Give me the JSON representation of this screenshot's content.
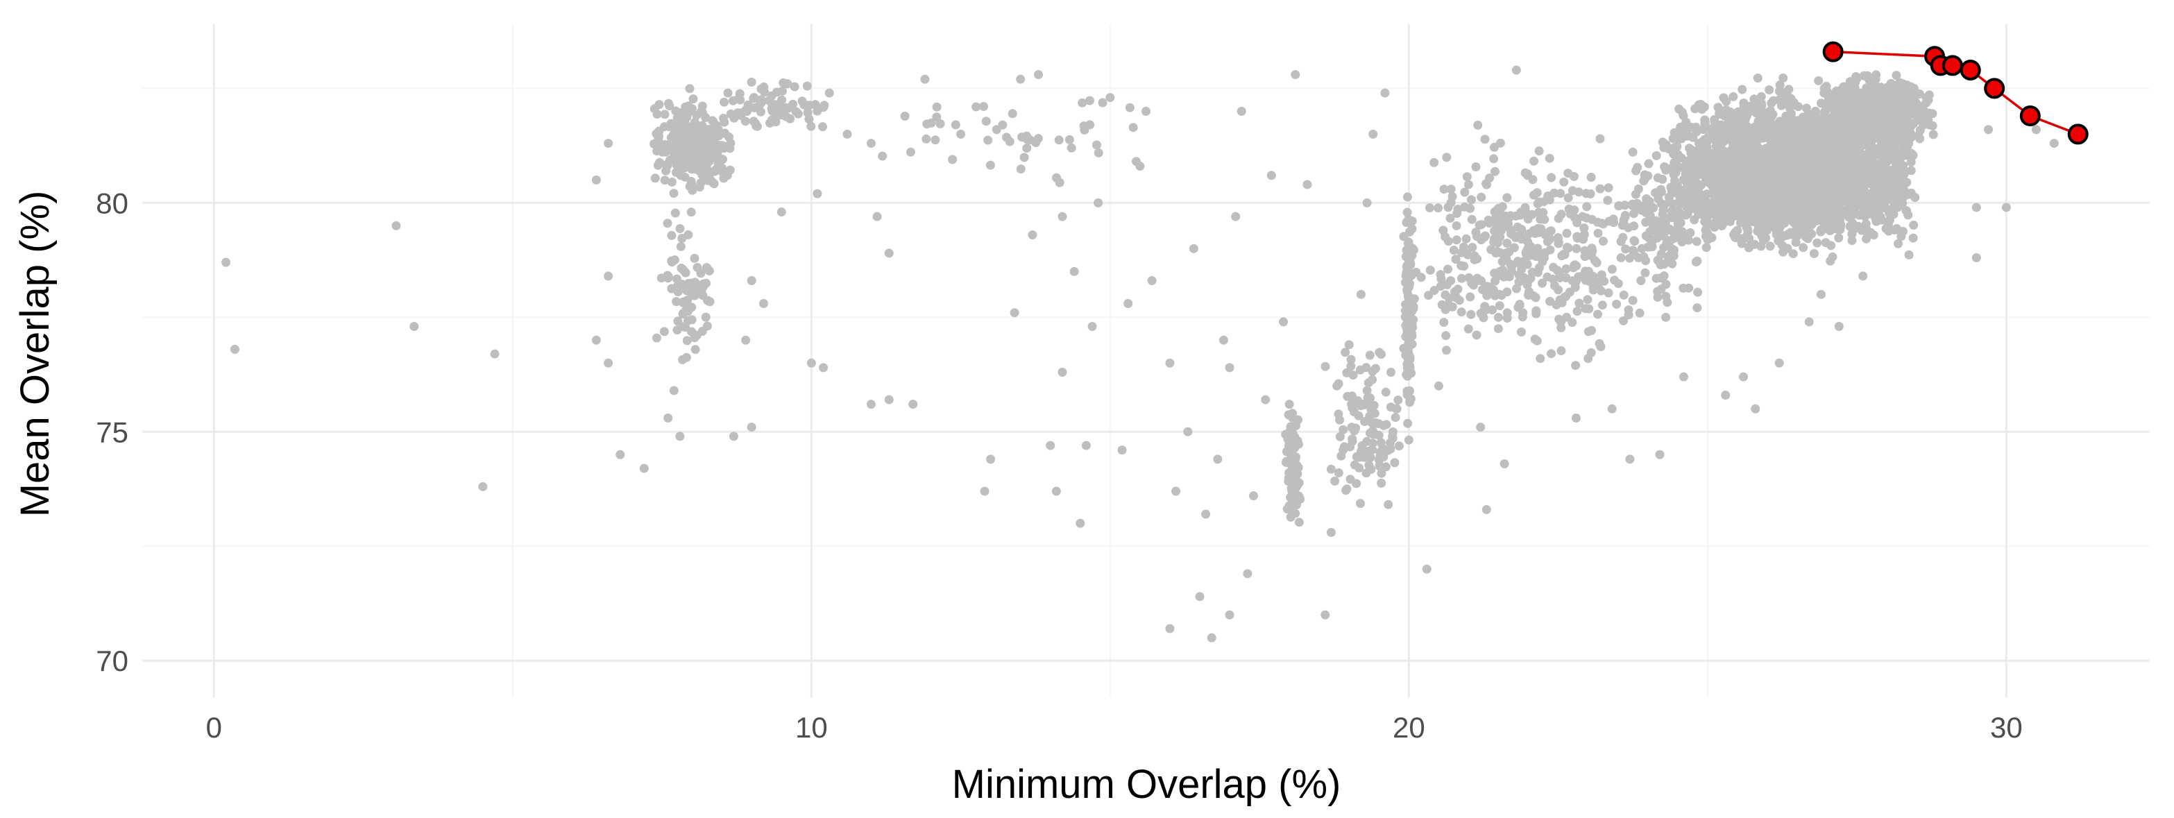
{
  "chart_data": {
    "type": "scatter",
    "title": "",
    "xlabel": "Minimum Overlap (%)",
    "ylabel": "Mean Overlap (%)",
    "xlim": [
      -1.2,
      32.4
    ],
    "ylim": [
      69.2,
      83.9
    ],
    "x_ticks": [
      0,
      10,
      20,
      30
    ],
    "y_ticks": [
      70,
      75,
      80
    ],
    "grid": true,
    "legend": "none",
    "colors": {
      "background_points": "#bebebe",
      "frontier_line": "#dd0000",
      "frontier_point_fill": "#ee0000",
      "frontier_point_stroke": "#000000",
      "grid_major": "#ebebeb",
      "grid_minor": "#f5f5f5"
    },
    "series": [
      {
        "role": "candidates",
        "marker": "point",
        "points": [
          [
            0.2,
            78.7
          ],
          [
            0.35,
            76.8
          ],
          [
            3.05,
            79.5
          ],
          [
            3.35,
            77.3
          ],
          [
            4.7,
            76.7
          ],
          [
            4.5,
            73.8
          ],
          [
            6.6,
            81.3
          ],
          [
            6.4,
            80.5
          ],
          [
            6.6,
            78.4
          ],
          [
            6.4,
            77.0
          ],
          [
            6.6,
            76.5
          ],
          [
            6.8,
            74.5
          ],
          [
            7.2,
            74.2
          ],
          [
            7.6,
            75.3
          ],
          [
            7.8,
            74.9
          ],
          [
            7.7,
            75.9
          ],
          [
            8.7,
            74.9
          ],
          [
            9.0,
            75.1
          ],
          [
            8.9,
            77.0
          ],
          [
            9.0,
            78.3
          ],
          [
            9.2,
            77.8
          ],
          [
            9.5,
            79.8
          ],
          [
            9.6,
            82.6
          ],
          [
            10.0,
            76.5
          ],
          [
            10.2,
            76.4
          ],
          [
            10.1,
            80.2
          ],
          [
            10.3,
            82.4
          ],
          [
            10.6,
            81.5
          ],
          [
            11.0,
            75.6
          ],
          [
            11.3,
            75.7
          ],
          [
            11.7,
            75.6
          ],
          [
            11.3,
            78.9
          ],
          [
            11.1,
            79.7
          ],
          [
            11.0,
            81.3
          ],
          [
            11.9,
            82.7
          ],
          [
            12.5,
            81.5
          ],
          [
            12.9,
            73.7
          ],
          [
            13.0,
            74.4
          ],
          [
            13.1,
            81.6
          ],
          [
            13.2,
            81.7
          ],
          [
            13.5,
            82.7
          ],
          [
            13.4,
            77.6
          ],
          [
            13.7,
            79.3
          ],
          [
            13.8,
            82.8
          ],
          [
            14.0,
            74.7
          ],
          [
            14.1,
            73.7
          ],
          [
            14.2,
            76.3
          ],
          [
            14.4,
            78.5
          ],
          [
            14.2,
            79.7
          ],
          [
            14.5,
            73.0
          ],
          [
            14.6,
            74.7
          ],
          [
            14.7,
            77.3
          ],
          [
            14.8,
            80.0
          ],
          [
            15.0,
            82.3
          ],
          [
            15.2,
            74.6
          ],
          [
            15.3,
            77.8
          ],
          [
            15.5,
            80.8
          ],
          [
            15.6,
            82.0
          ],
          [
            15.7,
            78.3
          ],
          [
            16.0,
            76.5
          ],
          [
            16.0,
            70.7
          ],
          [
            16.1,
            73.7
          ],
          [
            16.3,
            75.0
          ],
          [
            16.4,
            79.0
          ],
          [
            16.5,
            71.4
          ],
          [
            16.6,
            73.2
          ],
          [
            16.7,
            70.5
          ],
          [
            16.8,
            74.4
          ],
          [
            16.9,
            77.0
          ],
          [
            17.0,
            71.0
          ],
          [
            17.0,
            76.4
          ],
          [
            17.1,
            79.7
          ],
          [
            17.2,
            82.0
          ],
          [
            17.3,
            71.9
          ],
          [
            17.4,
            73.6
          ],
          [
            17.6,
            75.7
          ],
          [
            17.7,
            80.6
          ],
          [
            17.9,
            77.4
          ],
          [
            18.0,
            75.6
          ],
          [
            18.1,
            82.8
          ],
          [
            18.3,
            80.4
          ],
          [
            18.6,
            71.0
          ],
          [
            18.7,
            72.8
          ],
          [
            18.9,
            74.6
          ],
          [
            19.0,
            76.9
          ],
          [
            19.2,
            78.0
          ],
          [
            19.3,
            80.0
          ],
          [
            19.4,
            81.5
          ],
          [
            19.6,
            82.4
          ],
          [
            19.7,
            76.3
          ],
          [
            19.8,
            75.5
          ],
          [
            20.3,
            72.0
          ],
          [
            20.5,
            76.0
          ],
          [
            20.7,
            78.3
          ],
          [
            21.0,
            80.4
          ],
          [
            21.2,
            75.1
          ],
          [
            21.3,
            73.3
          ],
          [
            21.5,
            77.5
          ],
          [
            21.6,
            74.3
          ],
          [
            21.8,
            82.9
          ],
          [
            22.0,
            79.7
          ],
          [
            22.2,
            76.6
          ],
          [
            22.5,
            78.1
          ],
          [
            22.8,
            75.3
          ],
          [
            23.0,
            76.6
          ],
          [
            23.2,
            81.4
          ],
          [
            23.4,
            75.5
          ],
          [
            23.7,
            74.4
          ],
          [
            23.9,
            79.0
          ],
          [
            24.2,
            74.5
          ],
          [
            24.3,
            77.5
          ],
          [
            24.6,
            76.2
          ],
          [
            25.3,
            75.8
          ],
          [
            25.6,
            76.2
          ],
          [
            25.8,
            75.5
          ],
          [
            26.2,
            76.5
          ],
          [
            26.7,
            77.4
          ],
          [
            26.9,
            78.0
          ],
          [
            27.2,
            77.3
          ],
          [
            27.6,
            78.4
          ],
          [
            29.5,
            78.8
          ],
          [
            29.5,
            79.9
          ],
          [
            30.0,
            79.9
          ],
          [
            29.7,
            81.6
          ],
          [
            30.8,
            81.3
          ],
          [
            30.5,
            81.6
          ]
        ],
        "clusters": [
          {
            "x": [
              7.3,
              8.7
            ],
            "y": [
              80.0,
              82.6
            ],
            "n": 260
          },
          {
            "x": [
              7.4,
              8.4
            ],
            "y": [
              76.0,
              80.2
            ],
            "n": 80
          },
          {
            "x": [
              8.4,
              10.4
            ],
            "y": [
              81.4,
              82.8
            ],
            "n": 70
          },
          {
            "x": [
              11.0,
              16.0
            ],
            "y": [
              80.0,
              82.8
            ],
            "n": 45
          },
          {
            "x": [
              17.9,
              18.2
            ],
            "y": [
              72.4,
              75.8
            ],
            "n": 85
          },
          {
            "x": [
              18.5,
              20.0
            ],
            "y": [
              72.8,
              77.5
            ],
            "n": 110
          },
          {
            "x": [
              19.9,
              20.1
            ],
            "y": [
              74.5,
              80.6
            ],
            "n": 110
          },
          {
            "x": [
              20.0,
              24.0
            ],
            "y": [
              76.0,
              82.0
            ],
            "n": 400
          },
          {
            "x": [
              23.5,
              25.0
            ],
            "y": [
              77.0,
              82.0
            ],
            "n": 150
          },
          {
            "x": [
              24.2,
              28.6
            ],
            "y": [
              78.6,
              82.8
            ],
            "n": 2400
          },
          {
            "x": [
              26.8,
              28.9
            ],
            "y": [
              81.0,
              83.0
            ],
            "n": 500
          }
        ]
      },
      {
        "role": "frontier",
        "marker": "circle-with-line",
        "points": [
          [
            27.1,
            83.3
          ],
          [
            28.8,
            83.2
          ],
          [
            28.9,
            83.0
          ],
          [
            29.1,
            83.0
          ],
          [
            29.4,
            82.9
          ],
          [
            29.8,
            82.5
          ],
          [
            30.4,
            81.9
          ],
          [
            31.2,
            81.5
          ]
        ]
      }
    ]
  }
}
